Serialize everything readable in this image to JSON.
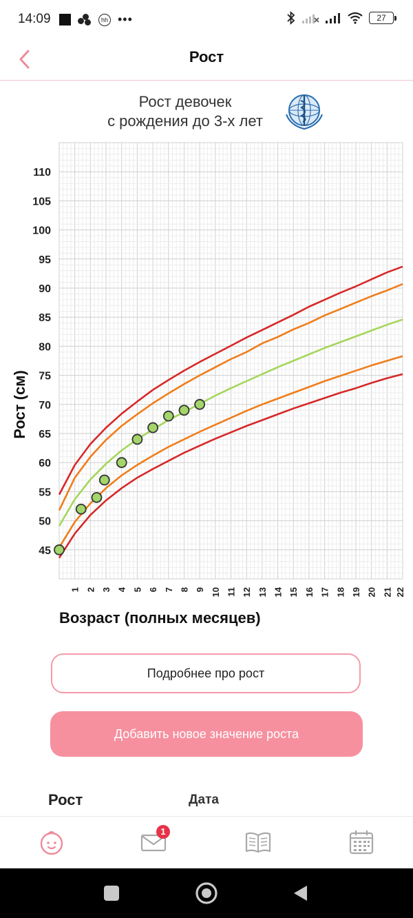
{
  "status_bar": {
    "time": "14:09",
    "battery": "27",
    "hh_label": "hh",
    "more": "•••"
  },
  "header": {
    "title": "Рост"
  },
  "chart": {
    "title_line1": "Рост девочек",
    "title_line2": "с рождения до 3-х лет",
    "logo": "who-emblem-icon"
  },
  "chart_data": {
    "type": "line",
    "xlabel": "Возраст (полных месяцев)",
    "ylabel": "Рост (см)",
    "xlim": [
      0,
      22
    ],
    "ylim": [
      40,
      115
    ],
    "x_ticks": [
      "1",
      "2",
      "3",
      "4",
      "5",
      "6",
      "7",
      "8",
      "9",
      "10",
      "11",
      "12",
      "13",
      "14",
      "15",
      "16",
      "17",
      "18",
      "19",
      "20",
      "21",
      "22"
    ],
    "y_ticks": [
      "45",
      "50",
      "55",
      "60",
      "65",
      "70",
      "75",
      "80",
      "85",
      "90",
      "95",
      "100",
      "105",
      "110"
    ],
    "grid": true,
    "series": [
      {
        "color": "#d62828",
        "x": [
          0,
          1,
          2,
          3,
          4,
          5,
          6,
          7,
          8,
          9,
          10,
          11,
          12,
          13,
          14,
          15,
          16,
          17,
          18,
          19,
          20,
          21,
          22
        ],
        "values": [
          54.5,
          59.6,
          63.2,
          66.0,
          68.4,
          70.5,
          72.5,
          74.2,
          75.8,
          77.3,
          78.7,
          80.1,
          81.5,
          82.8,
          84.1,
          85.4,
          86.8,
          88.0,
          89.2,
          90.3,
          91.5,
          92.7,
          93.7
        ]
      },
      {
        "color": "#ef7d1a",
        "x": [
          0,
          1,
          2,
          3,
          4,
          5,
          6,
          7,
          8,
          9,
          10,
          11,
          12,
          13,
          14,
          15,
          16,
          17,
          18,
          19,
          20,
          21,
          22
        ],
        "values": [
          51.8,
          57.4,
          61.0,
          63.9,
          66.3,
          68.3,
          70.2,
          71.9,
          73.5,
          75.0,
          76.4,
          77.8,
          79.0,
          80.5,
          81.6,
          82.9,
          84.0,
          85.3,
          86.4,
          87.5,
          88.6,
          89.6,
          90.7
        ]
      },
      {
        "color": "#a5d65a",
        "x": [
          0,
          1,
          2,
          3,
          4,
          5,
          6,
          7,
          8,
          9,
          10,
          11,
          12,
          13,
          14,
          15,
          16,
          17,
          18,
          19,
          20,
          21,
          22
        ],
        "values": [
          49.1,
          53.7,
          57.1,
          59.8,
          62.1,
          64.0,
          65.7,
          67.3,
          68.7,
          70.1,
          71.5,
          72.8,
          74.0,
          75.2,
          76.4,
          77.5,
          78.6,
          79.7,
          80.7,
          81.7,
          82.7,
          83.7,
          84.6
        ]
      },
      {
        "color": "#ef7d1a",
        "x": [
          0,
          1,
          2,
          3,
          4,
          5,
          6,
          7,
          8,
          9,
          10,
          11,
          12,
          13,
          14,
          15,
          16,
          17,
          18,
          19,
          20,
          21,
          22
        ],
        "values": [
          45.4,
          49.8,
          53.0,
          55.6,
          57.8,
          59.6,
          61.2,
          62.7,
          64.0,
          65.3,
          66.5,
          67.7,
          68.9,
          70.0,
          71.0,
          72.0,
          73.0,
          74.0,
          74.9,
          75.8,
          76.7,
          77.5,
          78.3
        ]
      },
      {
        "color": "#d62828",
        "x": [
          0,
          1,
          2,
          3,
          4,
          5,
          6,
          7,
          8,
          9,
          10,
          11,
          12,
          13,
          14,
          15,
          16,
          17,
          18,
          19,
          20,
          21,
          22
        ],
        "values": [
          43.6,
          47.8,
          51.0,
          53.5,
          55.6,
          57.4,
          58.9,
          60.3,
          61.7,
          62.9,
          64.1,
          65.2,
          66.3,
          67.3,
          68.3,
          69.3,
          70.2,
          71.1,
          72.0,
          72.8,
          73.7,
          74.5,
          75.2
        ]
      }
    ],
    "points": [
      {
        "x": 0.0,
        "y": 45
      },
      {
        "x": 1.4,
        "y": 52
      },
      {
        "x": 2.4,
        "y": 54
      },
      {
        "x": 2.9,
        "y": 57
      },
      {
        "x": 4.0,
        "y": 60
      },
      {
        "x": 5.0,
        "y": 64
      },
      {
        "x": 6.0,
        "y": 66
      },
      {
        "x": 7.0,
        "y": 68
      },
      {
        "x": 8.0,
        "y": 69
      },
      {
        "x": 9.0,
        "y": 70
      }
    ],
    "point_color": "#a3d56a"
  },
  "actions": {
    "more_label": "Подробнее про рост",
    "add_label": "Добавить новое значение роста"
  },
  "table": {
    "col_height": "Рост",
    "col_date": "Дата"
  },
  "bottom_nav": {
    "items": [
      {
        "icon": "baby-face-icon"
      },
      {
        "icon": "envelope-icon",
        "badge": "1"
      },
      {
        "icon": "book-icon"
      },
      {
        "icon": "calendar-icon"
      }
    ]
  },
  "colors": {
    "accent": "#f6909f",
    "accent_border": "#f49aa8",
    "badge": "#e6334a"
  }
}
